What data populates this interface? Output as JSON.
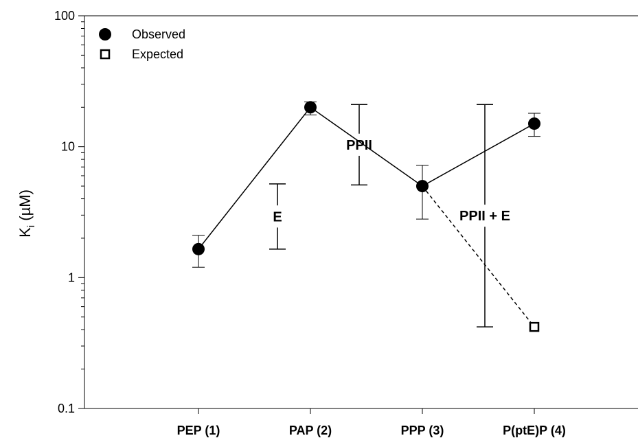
{
  "chart_data": {
    "type": "scatter",
    "yscale": "log",
    "ylim": [
      0.1,
      100
    ],
    "y_ticks": [
      "0.1",
      "1",
      "10",
      "100"
    ],
    "ylabel_main": "K",
    "ylabel_sub": "i",
    "ylabel_unit": " (µM)",
    "categories": [
      "PEP (1)",
      "PAP (2)",
      "PPP (3)",
      "P(ptE)P (4)"
    ],
    "series": [
      {
        "name": "Observed",
        "marker": "filled-circle",
        "line": "solid",
        "points": [
          {
            "x": 1,
            "y": 1.65,
            "err_low": 1.2,
            "err_high": 2.1
          },
          {
            "x": 2,
            "y": 20,
            "err_low": 17.5,
            "err_high": 22
          },
          {
            "x": 3,
            "y": 5.0,
            "err_low": 2.8,
            "err_high": 7.2
          },
          {
            "x": 4,
            "y": 15,
            "err_low": 12,
            "err_high": 18
          }
        ]
      },
      {
        "name": "Expected",
        "marker": "open-square",
        "line": "dashed",
        "points": [
          {
            "x": 3,
            "y": 5.0
          },
          {
            "x": 4,
            "y": 0.42,
            "marker": true
          }
        ]
      }
    ],
    "brackets": [
      {
        "label": "E",
        "x": 1.5,
        "low": 1.65,
        "high": 5.2
      },
      {
        "label": "PPII",
        "x": 2.5,
        "low": 5.1,
        "high": 21
      },
      {
        "label": "PPII + E",
        "x": 3.5,
        "low": 0.42,
        "high": 21
      }
    ],
    "legend_position": "top-left",
    "grid": false
  }
}
